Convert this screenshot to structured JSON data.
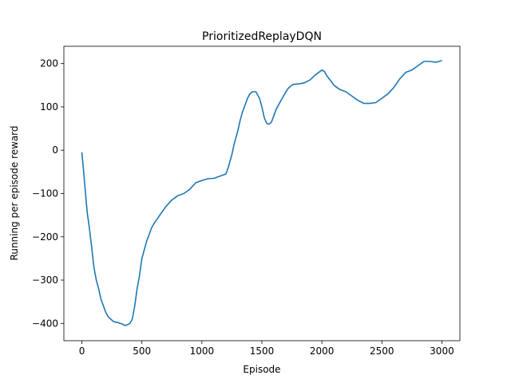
{
  "chart_data": {
    "type": "line",
    "title": "PrioritizedReplayDQN",
    "xlabel": "Episode",
    "ylabel": "Running per episode reward",
    "xlim": [
      -150,
      3150
    ],
    "ylim": [
      -440,
      240
    ],
    "xticks": [
      0,
      500,
      1000,
      1500,
      2000,
      2500,
      3000
    ],
    "yticks": [
      -400,
      -300,
      -200,
      -100,
      0,
      100,
      200
    ],
    "grid": false,
    "line_color": "#1f77b4",
    "series": [
      {
        "x": [
          0,
          15,
          30,
          45,
          60,
          80,
          100,
          120,
          140,
          160,
          180,
          200,
          220,
          240,
          260,
          280,
          300,
          320,
          340,
          360,
          380,
          400,
          420,
          440,
          460,
          480,
          500,
          520,
          540,
          560,
          580,
          600,
          650,
          700,
          750,
          800,
          850,
          900,
          950,
          1000,
          1050,
          1100,
          1150,
          1200,
          1220,
          1250,
          1270,
          1300,
          1320,
          1340,
          1360,
          1380,
          1400,
          1420,
          1450,
          1480,
          1500,
          1520,
          1540,
          1560,
          1580,
          1600,
          1620,
          1640,
          1660,
          1680,
          1700,
          1720,
          1740,
          1760,
          1800,
          1850,
          1900,
          1950,
          2000,
          2020,
          2040,
          2060,
          2080,
          2100,
          2150,
          2200,
          2250,
          2300,
          2350,
          2400,
          2450,
          2500,
          2550,
          2600,
          2650,
          2700,
          2750,
          2800,
          2850,
          2900,
          2950,
          3000
        ],
        "y": [
          -5,
          -50,
          -100,
          -145,
          -175,
          -220,
          -270,
          -300,
          -320,
          -345,
          -360,
          -375,
          -385,
          -390,
          -395,
          -397,
          -398,
          -400,
          -402,
          -405,
          -403,
          -400,
          -390,
          -360,
          -320,
          -290,
          -250,
          -230,
          -210,
          -195,
          -180,
          -170,
          -150,
          -130,
          -115,
          -105,
          -100,
          -90,
          -75,
          -70,
          -66,
          -65,
          -60,
          -55,
          -40,
          -10,
          15,
          45,
          70,
          90,
          105,
          120,
          130,
          135,
          135,
          120,
          100,
          75,
          62,
          60,
          65,
          80,
          95,
          105,
          115,
          125,
          135,
          143,
          148,
          152,
          153,
          155,
          162,
          175,
          185,
          182,
          172,
          165,
          158,
          150,
          140,
          135,
          125,
          115,
          108,
          108,
          110,
          120,
          130,
          145,
          165,
          180,
          185,
          195,
          205,
          205,
          203,
          207
        ]
      }
    ]
  }
}
